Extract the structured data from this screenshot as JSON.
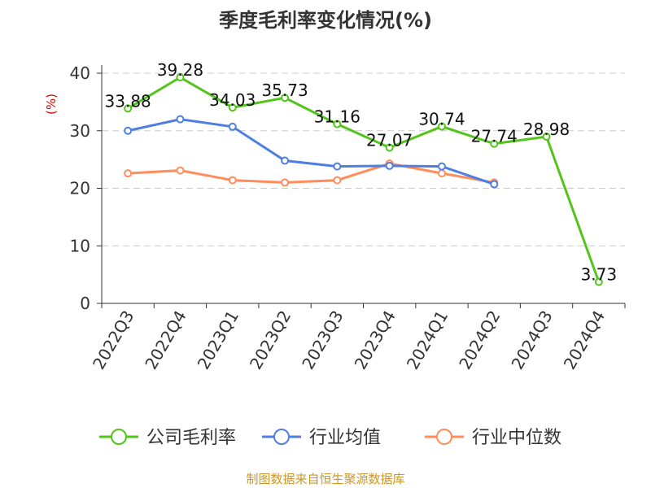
{
  "chart_data": {
    "type": "line",
    "title": "季度毛利率变化情况(%)",
    "ylabel": "(%)",
    "ylim": [
      0,
      40
    ],
    "yticks": [
      0,
      10,
      20,
      30,
      40
    ],
    "grid": true,
    "legend_position": "bottom",
    "categories": [
      "2022Q3",
      "2022Q4",
      "2023Q1",
      "2023Q2",
      "2023Q3",
      "2023Q4",
      "2024Q1",
      "2024Q2",
      "2024Q3",
      "2024Q4"
    ],
    "series": [
      {
        "name": "公司毛利率",
        "color": "#52c41a",
        "labels": true,
        "values": [
          33.88,
          39.28,
          34.03,
          35.73,
          31.16,
          27.07,
          30.74,
          27.74,
          28.98,
          3.73
        ]
      },
      {
        "name": "行业均值",
        "color": "#4e7fe0",
        "labels": false,
        "values": [
          30.0,
          32.0,
          30.7,
          24.8,
          23.8,
          23.9,
          23.8,
          20.7,
          null,
          null
        ]
      },
      {
        "name": "行业中位数",
        "color": "#ff8c5a",
        "labels": false,
        "values": [
          22.6,
          23.1,
          21.4,
          21.0,
          21.4,
          24.3,
          22.6,
          21.0,
          null,
          null
        ]
      }
    ]
  },
  "footer": "制图数据来自恒生聚源数据库"
}
